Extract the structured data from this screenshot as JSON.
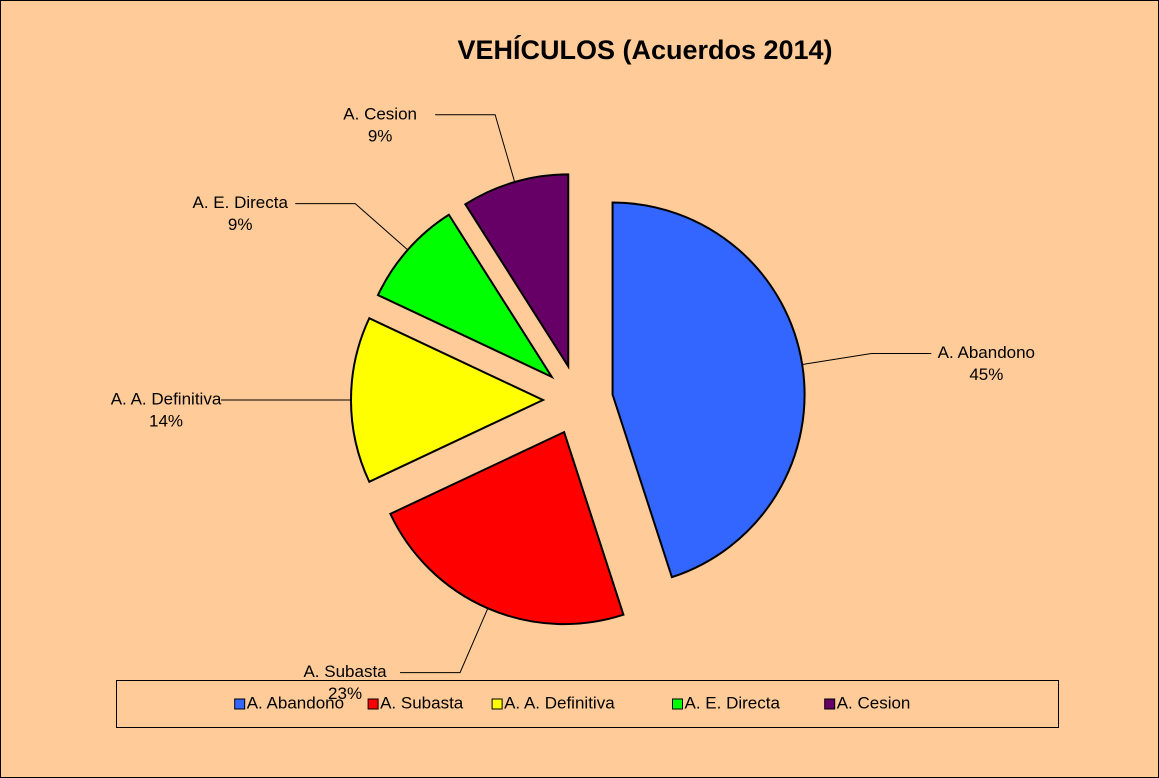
{
  "chart_data": {
    "type": "pie",
    "title": "VEHÍCULOS (Acuerdos 2014)",
    "categories": [
      "A. Abandono",
      "A. Subasta",
      "A. A. Definitiva",
      "A. E. Directa",
      "A. Cesion"
    ],
    "values": [
      45,
      23,
      14,
      9,
      9
    ],
    "value_labels": [
      "45%",
      "23%",
      "14%",
      "9%",
      "9%"
    ],
    "colors": [
      "#3366ff",
      "#ff0000",
      "#ffff00",
      "#00ff00",
      "#660066"
    ],
    "legend": "bottom",
    "exploded": true
  }
}
